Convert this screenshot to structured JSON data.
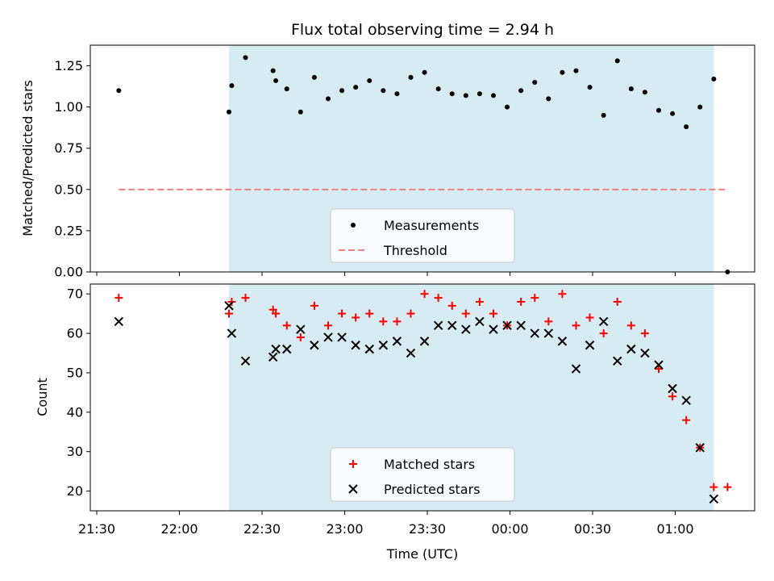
{
  "chart_data": [
    {
      "type": "scatter",
      "title": "Flux total observing time = 2.94 h",
      "xlabel": "",
      "ylabel": "Matched/Predicted stars",
      "ylim": [
        0,
        1.375
      ],
      "yticks": [
        "0.00",
        "0.25",
        "0.50",
        "0.75",
        "1.00",
        "1.25"
      ],
      "legend_position": "lower-center",
      "observing_window": [
        "22:18",
        "01:14"
      ],
      "series": [
        {
          "name": "Measurements",
          "color": "#000000",
          "marker": "dot",
          "x": [
            "21:38",
            "22:18",
            "22:19",
            "22:24",
            "22:34",
            "22:35",
            "22:39",
            "22:44",
            "22:49",
            "22:54",
            "22:59",
            "23:04",
            "23:09",
            "23:14",
            "23:19",
            "23:24",
            "23:29",
            "23:34",
            "23:39",
            "23:44",
            "23:49",
            "23:54",
            "23:59",
            "00:04",
            "00:09",
            "00:14",
            "00:19",
            "00:24",
            "00:29",
            "00:34",
            "00:39",
            "00:44",
            "00:49",
            "00:54",
            "00:59",
            "01:04",
            "01:09",
            "01:14",
            "01:19"
          ],
          "y": [
            1.1,
            0.97,
            1.13,
            1.3,
            1.22,
            1.16,
            1.11,
            0.97,
            1.18,
            1.05,
            1.1,
            1.12,
            1.16,
            1.1,
            1.08,
            1.18,
            1.21,
            1.11,
            1.08,
            1.07,
            1.08,
            1.07,
            1.0,
            1.1,
            1.15,
            1.05,
            1.21,
            1.22,
            1.12,
            0.95,
            1.28,
            1.11,
            1.09,
            0.98,
            0.96,
            0.88,
            1.0,
            1.17,
            0.0
          ]
        },
        {
          "name": "Threshold",
          "color": "#f08080",
          "style": "dashed",
          "x": [
            "21:38",
            "01:19"
          ],
          "y": [
            0.5,
            0.5
          ]
        }
      ]
    },
    {
      "type": "scatter",
      "title": "",
      "xlabel": "Time (UTC)",
      "ylabel": "Count",
      "ylim": [
        15,
        72.5
      ],
      "yticks": [
        "20",
        "30",
        "40",
        "50",
        "60",
        "70"
      ],
      "xticks": [
        "21:30",
        "22:00",
        "22:30",
        "23:00",
        "23:30",
        "00:00",
        "00:30",
        "01:00"
      ],
      "legend_position": "lower-center",
      "observing_window": [
        "22:18",
        "01:14"
      ],
      "series": [
        {
          "name": "Matched stars",
          "color": "#ff0000",
          "marker": "plus",
          "x": [
            "21:38",
            "22:18",
            "22:19",
            "22:24",
            "22:34",
            "22:35",
            "22:39",
            "22:44",
            "22:49",
            "22:54",
            "22:59",
            "23:04",
            "23:09",
            "23:14",
            "23:19",
            "23:24",
            "23:29",
            "23:34",
            "23:39",
            "23:44",
            "23:49",
            "23:54",
            "23:59",
            "00:04",
            "00:09",
            "00:14",
            "00:19",
            "00:24",
            "00:29",
            "00:34",
            "00:39",
            "00:44",
            "00:49",
            "00:54",
            "00:59",
            "01:04",
            "01:09",
            "01:14",
            "01:19"
          ],
          "y": [
            69,
            65,
            68,
            69,
            66,
            65,
            62,
            59,
            67,
            62,
            65,
            64,
            65,
            63,
            63,
            65,
            70,
            69,
            67,
            65,
            68,
            65,
            62,
            68,
            69,
            63,
            70,
            62,
            64,
            60,
            68,
            62,
            60,
            51,
            44,
            38,
            31,
            21,
            21
          ]
        },
        {
          "name": "Predicted stars",
          "color": "#000000",
          "marker": "x",
          "x": [
            "21:38",
            "22:18",
            "22:19",
            "22:24",
            "22:34",
            "22:35",
            "22:39",
            "22:44",
            "22:49",
            "22:54",
            "22:59",
            "23:04",
            "23:09",
            "23:14",
            "23:19",
            "23:24",
            "23:29",
            "23:34",
            "23:39",
            "23:44",
            "23:49",
            "23:54",
            "23:59",
            "00:04",
            "00:09",
            "00:14",
            "00:19",
            "00:24",
            "00:29",
            "00:34",
            "00:39",
            "00:44",
            "00:49",
            "00:54",
            "00:59",
            "01:04",
            "01:09",
            "01:14"
          ],
          "y": [
            63,
            67,
            60,
            53,
            54,
            56,
            56,
            61,
            57,
            59,
            59,
            57,
            56,
            57,
            58,
            55,
            58,
            62,
            62,
            61,
            63,
            61,
            62,
            62,
            60,
            60,
            58,
            51,
            57,
            63,
            53,
            56,
            55,
            52,
            46,
            43,
            31,
            18
          ]
        }
      ]
    }
  ]
}
